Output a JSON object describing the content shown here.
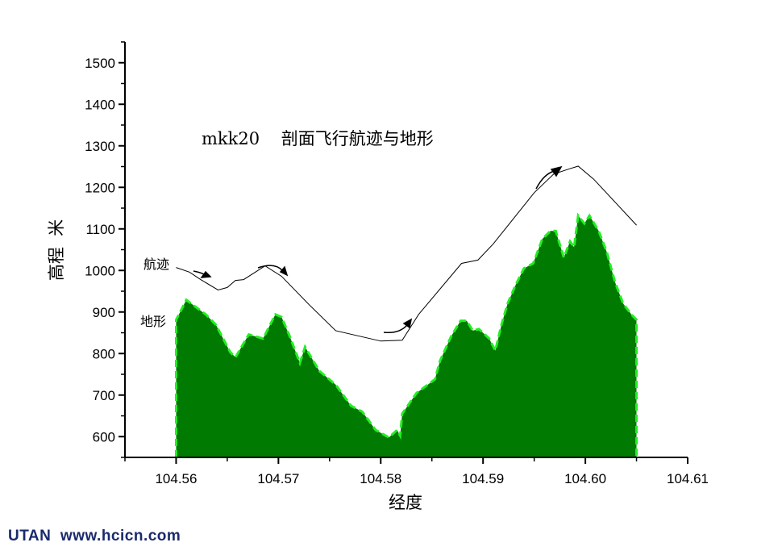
{
  "chart_data": {
    "type": "area",
    "title": "mkk20    剖面飞行航迹与地形",
    "xlabel": "经度",
    "ylabel": "高程  米",
    "xlim": [
      104.555,
      104.61
    ],
    "ylim": [
      550,
      1550
    ],
    "xticks": [
      "104.56",
      "104.57",
      "104.58",
      "104.59",
      "104.60",
      "104.61"
    ],
    "xtick_values": [
      104.56,
      104.57,
      104.58,
      104.59,
      104.6,
      104.61
    ],
    "yticks": [
      "600",
      "700",
      "800",
      "900",
      "1000",
      "1100",
      "1200",
      "1300",
      "1400",
      "1500"
    ],
    "ytick_values": [
      600,
      700,
      800,
      900,
      1000,
      1100,
      1200,
      1300,
      1400,
      1500
    ],
    "grid": false,
    "series": [
      {
        "name": "地形",
        "kind": "filled-area",
        "fill": "#007a00",
        "edge": "#22ee22",
        "x": [
          104.56,
          104.561,
          104.5629,
          104.5639,
          104.5653,
          104.5658,
          104.5671,
          104.5685,
          104.5697,
          104.5703,
          104.5711,
          104.5721,
          104.5726,
          104.574,
          104.5756,
          104.5771,
          104.5782,
          104.5795,
          104.5808,
          104.5816,
          104.5819,
          104.5821,
          104.5835,
          104.5853,
          104.5858,
          104.5869,
          104.5878,
          104.5884,
          104.589,
          104.5896,
          104.5906,
          104.5912,
          104.5918,
          104.5924,
          104.5932,
          104.594,
          104.5949,
          104.5958,
          104.5966,
          104.5971,
          104.5979,
          104.5985,
          104.5989,
          104.5993,
          104.5999,
          104.6004,
          104.6013,
          104.6021,
          104.6029,
          104.6037,
          104.6045,
          104.605
        ],
        "y": [
          881,
          929,
          894,
          869,
          803,
          791,
          846,
          836,
          894,
          888,
          842,
          777,
          816,
          758,
          725,
          674,
          660,
          616,
          598,
          616,
          602,
          655,
          705,
          738,
          783,
          842,
          879,
          879,
          855,
          859,
          836,
          807,
          869,
          920,
          966,
          1005,
          1017,
          1076,
          1095,
          1095,
          1031,
          1070,
          1056,
          1132,
          1113,
          1132,
          1095,
          1044,
          972,
          920,
          894,
          881
        ]
      },
      {
        "name": "航迹",
        "kind": "line",
        "color": "#000000",
        "x": [
          104.56,
          104.5613,
          104.5624,
          104.5641,
          104.565,
          104.5658,
          104.5666,
          104.5687,
          104.5703,
          104.5729,
          104.5756,
          104.58,
          104.5821,
          104.5837,
          104.5879,
          104.5895,
          104.591,
          104.595,
          104.5969,
          104.5985,
          104.5993,
          104.6008,
          104.605
        ],
        "y": [
          1007,
          996,
          978,
          953,
          959,
          976,
          978,
          1011,
          986,
          920,
          855,
          830,
          832,
          894,
          1017,
          1025,
          1064,
          1187,
          1232,
          1245,
          1251,
          1220,
          1109
        ]
      }
    ],
    "annotations": {
      "track_label": "航迹",
      "terrain_label": "地形"
    }
  },
  "watermark": "UTAN  www.hcicn.com"
}
